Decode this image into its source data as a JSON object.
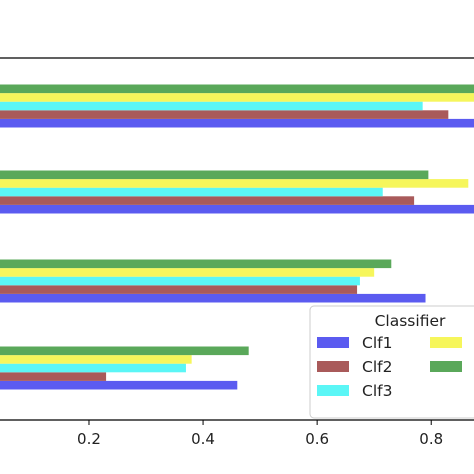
{
  "chart_data": {
    "type": "bar",
    "orientation": "horizontal",
    "groups": 4,
    "xlim": [
      0.044,
      0.875
    ],
    "xticks": [
      0.2,
      0.4,
      0.6,
      0.8
    ],
    "xtick_labels": [
      "0.2",
      "0.4",
      "0.6",
      "0.8"
    ],
    "grid": false,
    "legend_placement": "lower-right",
    "legend_title": "Classifier",
    "series": [
      {
        "name": "Clf1",
        "color": "#5b5bf0",
        "values": [
          0.46,
          0.79,
          0.88,
          0.88
        ]
      },
      {
        "name": "Clf2",
        "color": "#a95a5a",
        "values": [
          0.23,
          0.67,
          0.77,
          0.83
        ]
      },
      {
        "name": "Clf3",
        "color": "#5bf6f6",
        "values": [
          0.37,
          0.675,
          0.715,
          0.785
        ]
      },
      {
        "name": "",
        "color": "#f6f65b",
        "values": [
          0.38,
          0.7,
          0.865,
          0.88
        ]
      },
      {
        "name": "",
        "color": "#5aa85a",
        "values": [
          0.48,
          0.73,
          0.795,
          0.88
        ]
      }
    ]
  }
}
